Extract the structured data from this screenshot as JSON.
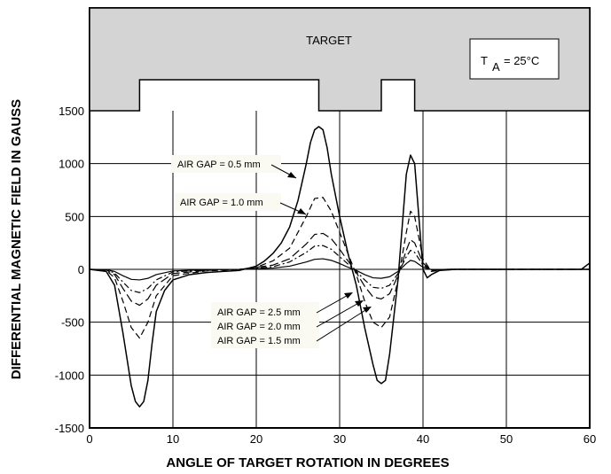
{
  "chart_data": {
    "type": "line",
    "xlabel": "ANGLE OF TARGET ROTATION IN DEGREES",
    "ylabel": "DIFFERENTIAL MAGNETIC FIELD IN GAUSS",
    "xlim": [
      0,
      60
    ],
    "ylim": [
      -1500,
      1500
    ],
    "x_ticks": [
      "0",
      "10",
      "20",
      "30",
      "40",
      "50",
      "60"
    ],
    "y_ticks": [
      "-1500",
      "-1000",
      "-500",
      "0",
      "500",
      "1000",
      "1500"
    ],
    "grid": true,
    "target_label": "TARGET",
    "temperature_label": {
      "symbol": "T",
      "subscript": "A",
      "value": "= 25°C"
    },
    "target_profile": {
      "tooth_low_segments": [
        [
          0,
          6
        ],
        [
          27.5,
          35
        ],
        [
          39,
          60
        ]
      ],
      "tooth_high_segments": [
        [
          6,
          27.5
        ],
        [
          35,
          39
        ]
      ]
    },
    "series": [
      {
        "name": "AIR GAP = 0.5 mm",
        "color": "#000000",
        "dash": "solid",
        "x": [
          0,
          2,
          3,
          4,
          5,
          5.5,
          6,
          6.5,
          7,
          7.5,
          8,
          9,
          10,
          12,
          14,
          16,
          18,
          20,
          21,
          22,
          23,
          24,
          25,
          26,
          26.5,
          27,
          27.5,
          28,
          28.5,
          29,
          30,
          31,
          31.5,
          32,
          33,
          34,
          34.5,
          35,
          35.5,
          36,
          37,
          37.5,
          38,
          38.5,
          39,
          39.5,
          40,
          40.5,
          41,
          42,
          43,
          44,
          50,
          59,
          60
        ],
        "y": [
          0,
          -20,
          -150,
          -600,
          -1100,
          -1250,
          -1300,
          -1250,
          -1050,
          -700,
          -400,
          -200,
          -100,
          -50,
          -30,
          -20,
          -10,
          30,
          80,
          150,
          250,
          400,
          650,
          1000,
          1200,
          1320,
          1350,
          1320,
          1150,
          900,
          500,
          150,
          0,
          -150,
          -550,
          -900,
          -1050,
          -1080,
          -1050,
          -800,
          -100,
          400,
          900,
          1080,
          1000,
          500,
          0,
          -80,
          -50,
          -10,
          -5,
          0,
          0,
          0,
          60
        ]
      },
      {
        "name": "AIR GAP = 1.0 mm",
        "color": "#000000",
        "dash": "dashed",
        "x": [
          0,
          2,
          3,
          4,
          5,
          6,
          7,
          8,
          10,
          14,
          18,
          20,
          22,
          24,
          26,
          27,
          28,
          29,
          30,
          31,
          32,
          33,
          34,
          35,
          36,
          37,
          38,
          38.5,
          39,
          40,
          41,
          43,
          60
        ],
        "y": [
          0,
          -10,
          -80,
          -300,
          -550,
          -650,
          -500,
          -250,
          -60,
          -15,
          0,
          20,
          80,
          200,
          500,
          670,
          680,
          550,
          350,
          150,
          -50,
          -300,
          -500,
          -550,
          -450,
          -100,
          350,
          550,
          500,
          100,
          -20,
          0,
          0
        ]
      },
      {
        "name": "AIR GAP = 1.5 mm",
        "color": "#000000",
        "dash": "longdash",
        "x": [
          0,
          2,
          3,
          4,
          5,
          6,
          7,
          8,
          10,
          14,
          18,
          22,
          24,
          26,
          27,
          28,
          29,
          30,
          31,
          32,
          33,
          34,
          35,
          36,
          37,
          38,
          38.5,
          39,
          40,
          41,
          43,
          60
        ],
        "y": [
          0,
          -5,
          -50,
          -180,
          -300,
          -340,
          -280,
          -150,
          -40,
          -10,
          0,
          40,
          100,
          240,
          330,
          340,
          290,
          190,
          80,
          -30,
          -160,
          -260,
          -280,
          -230,
          -60,
          180,
          280,
          250,
          60,
          -10,
          0,
          0
        ]
      },
      {
        "name": "AIR GAP = 2.0 mm",
        "color": "#000000",
        "dash": "dashdot",
        "x": [
          0,
          2,
          3,
          4,
          5,
          6,
          7,
          8,
          10,
          14,
          18,
          22,
          24,
          26,
          27,
          28,
          29,
          30,
          31,
          32,
          33,
          34,
          35,
          36,
          37,
          38,
          38.5,
          39,
          40,
          41,
          43,
          60
        ],
        "y": [
          0,
          -3,
          -35,
          -120,
          -200,
          -220,
          -180,
          -100,
          -25,
          -5,
          0,
          25,
          70,
          160,
          220,
          225,
          190,
          120,
          50,
          -20,
          -100,
          -170,
          -180,
          -150,
          -40,
          120,
          180,
          160,
          40,
          -5,
          0,
          0
        ]
      },
      {
        "name": "AIR GAP = 2.5 mm",
        "color": "#000000",
        "dash": "solid",
        "x": [
          0,
          2,
          3,
          4,
          5,
          6,
          7,
          8,
          10,
          14,
          18,
          22,
          24,
          26,
          27,
          28,
          29,
          30,
          31,
          32,
          33,
          34,
          35,
          36,
          37,
          38,
          38.5,
          39,
          40,
          41,
          43,
          60
        ],
        "y": [
          0,
          -2,
          -20,
          -60,
          -95,
          -100,
          -85,
          -50,
          -15,
          -3,
          0,
          12,
          30,
          70,
          95,
          100,
          85,
          55,
          20,
          -10,
          -50,
          -80,
          -85,
          -70,
          -20,
          55,
          85,
          75,
          20,
          -3,
          0,
          0
        ]
      }
    ],
    "annotations": [
      {
        "text": "AIR GAP = 0.5 mm"
      },
      {
        "text": "AIR GAP = 1.0 mm"
      },
      {
        "text": "AIR GAP = 2.5 mm"
      },
      {
        "text": "AIR GAP = 2.0 mm"
      },
      {
        "text": "AIR GAP = 1.5 mm"
      }
    ]
  }
}
